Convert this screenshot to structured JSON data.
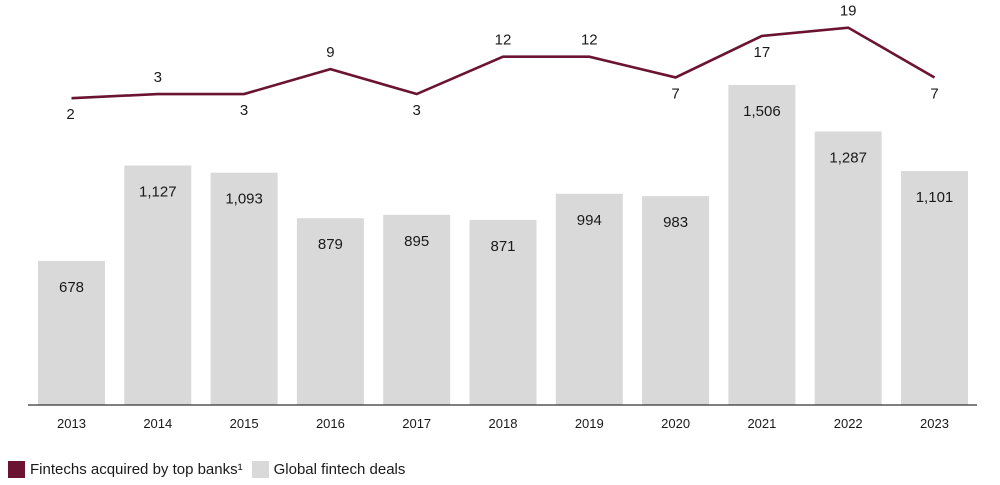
{
  "chart_data": {
    "type": "bar",
    "categories": [
      "2013",
      "2014",
      "2015",
      "2016",
      "2017",
      "2018",
      "2019",
      "2020",
      "2021",
      "2022",
      "2023"
    ],
    "series": [
      {
        "name": "Global fintech deals",
        "type": "bar",
        "color": "#d9d9d9",
        "values": [
          678,
          1127,
          1093,
          879,
          895,
          871,
          994,
          983,
          1506,
          1287,
          1101
        ],
        "labels": [
          "678",
          "1,127",
          "1,093",
          "879",
          "895",
          "871",
          "994",
          "983",
          "1,506",
          "1,287",
          "1,101"
        ]
      },
      {
        "name": "Fintechs acquired by top banks¹",
        "type": "line",
        "color": "#6b1332",
        "values": [
          2,
          3,
          3,
          9,
          3,
          12,
          12,
          7,
          17,
          19,
          7
        ],
        "labels": [
          "2",
          "3",
          "3",
          "9",
          "3",
          "12",
          "12",
          "7",
          "17",
          "19",
          "7"
        ]
      }
    ],
    "legend": "bottom-left",
    "grid": false
  }
}
